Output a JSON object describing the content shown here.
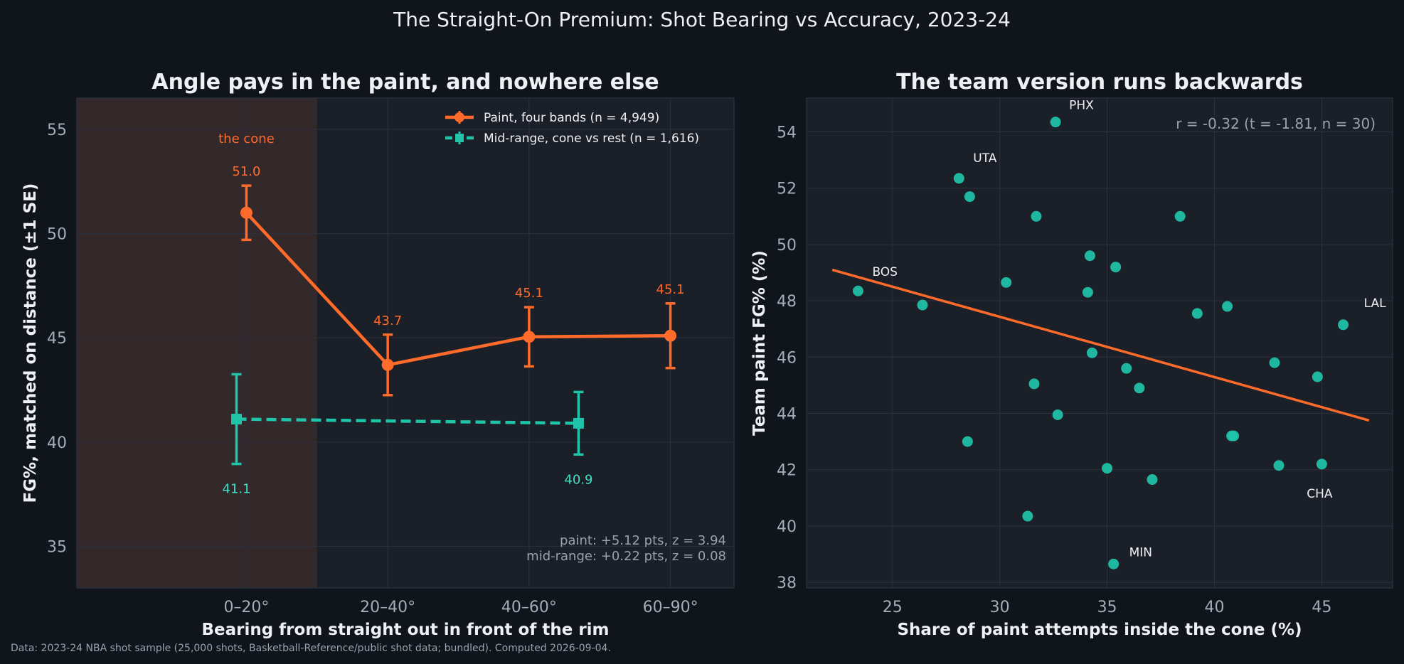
{
  "figure": {
    "suptitle": "The Straight-On Premium: Shot Bearing vs Accuracy, 2023-24",
    "footer": "Data: 2023-24 NBA shot sample (25,000 shots, Basketball-Reference/public shot data; bundled). Computed 2026-09-04."
  },
  "colors": {
    "background": "#10141b",
    "panel": "#1b1f27",
    "grid": "#2c3140",
    "axis_text": "#a6abb8",
    "label_text": "#eef0f4",
    "orange": "#ff6b2b",
    "teal": "#1fc4a9",
    "cone_shade": "#33282a",
    "muted": "#9aa0ad"
  },
  "chart_data": [
    {
      "type": "line",
      "title": "Angle pays in the paint, and nowhere else",
      "xlabel": "Bearing from straight out in front of the rim",
      "ylabel": "FG%, matched on distance (±1 SE)",
      "categories": [
        "0–20°",
        "20–40°",
        "40–60°",
        "60–90°"
      ],
      "ylim": [
        33,
        56.5
      ],
      "yticks": [
        35,
        40,
        45,
        50,
        55
      ],
      "grid": true,
      "legend_position": "top-right",
      "shaded_region": {
        "label": "the cone",
        "from": -0.6,
        "to": 0.5
      },
      "series": [
        {
          "name": "Paint, four bands (n = 4,949)",
          "style": "solid",
          "marker": "circle",
          "color": "#ff6b2b",
          "points": [
            {
              "x": 0,
              "y": 51.0,
              "se": 1.3,
              "label": "51.0"
            },
            {
              "x": 1,
              "y": 43.7,
              "se": 1.45,
              "label": "43.7"
            },
            {
              "x": 2,
              "y": 45.05,
              "se": 1.42,
              "label": "45.1"
            },
            {
              "x": 3,
              "y": 45.1,
              "se": 1.55,
              "label": "45.1"
            }
          ]
        },
        {
          "name": "Mid-range, cone vs rest (n = 1,616)",
          "style": "dashed",
          "marker": "square",
          "color": "#1fc4a9",
          "points": [
            {
              "x": -0.07,
              "y": 41.1,
              "se": 2.15,
              "label": "41.1"
            },
            {
              "x": 2.35,
              "y": 40.9,
              "se": 1.5,
              "label": "40.9"
            }
          ]
        }
      ],
      "annotations": [
        "paint: +5.12 pts, z = 3.94",
        "mid-range: +0.22 pts, z = 0.08"
      ]
    },
    {
      "type": "scatter",
      "title": "The team version runs backwards",
      "xlabel": "Share of paint attempts inside the cone (%)",
      "ylabel": "Team paint FG% (%)",
      "xlim": [
        21,
        48.3
      ],
      "ylim": [
        37.8,
        55.2
      ],
      "xticks": [
        25,
        30,
        35,
        40,
        45
      ],
      "yticks": [
        38,
        40,
        42,
        44,
        46,
        48,
        50,
        52,
        54
      ],
      "grid": true,
      "stat_label": "r = -0.32  (t = -1.81, n = 30)",
      "trend_line": {
        "x": [
          22.2,
          47.2
        ],
        "y": [
          49.1,
          43.75
        ]
      },
      "points": [
        {
          "x": 23.4,
          "y": 48.35,
          "label": "BOS"
        },
        {
          "x": 26.4,
          "y": 47.85
        },
        {
          "x": 28.1,
          "y": 52.35,
          "label": "UTA"
        },
        {
          "x": 28.6,
          "y": 51.7
        },
        {
          "x": 28.5,
          "y": 43.0
        },
        {
          "x": 30.3,
          "y": 48.65
        },
        {
          "x": 31.3,
          "y": 40.35
        },
        {
          "x": 31.6,
          "y": 45.05
        },
        {
          "x": 31.7,
          "y": 51.0
        },
        {
          "x": 32.6,
          "y": 54.35,
          "label": "PHX"
        },
        {
          "x": 32.7,
          "y": 43.95
        },
        {
          "x": 34.1,
          "y": 48.3
        },
        {
          "x": 34.2,
          "y": 49.6
        },
        {
          "x": 34.3,
          "y": 46.15
        },
        {
          "x": 35.0,
          "y": 42.05
        },
        {
          "x": 35.3,
          "y": 38.65,
          "label": "MIN"
        },
        {
          "x": 35.4,
          "y": 49.2
        },
        {
          "x": 35.9,
          "y": 45.6
        },
        {
          "x": 36.5,
          "y": 44.9
        },
        {
          "x": 37.1,
          "y": 41.65
        },
        {
          "x": 38.4,
          "y": 51.0
        },
        {
          "x": 39.2,
          "y": 47.55
        },
        {
          "x": 40.6,
          "y": 47.8
        },
        {
          "x": 40.8,
          "y": 43.2
        },
        {
          "x": 40.9,
          "y": 43.2
        },
        {
          "x": 42.8,
          "y": 45.8
        },
        {
          "x": 43.0,
          "y": 42.15
        },
        {
          "x": 44.8,
          "y": 45.3
        },
        {
          "x": 45.0,
          "y": 42.2,
          "label": "CHA"
        },
        {
          "x": 46.0,
          "y": 47.15,
          "label": "LAL"
        }
      ]
    }
  ]
}
